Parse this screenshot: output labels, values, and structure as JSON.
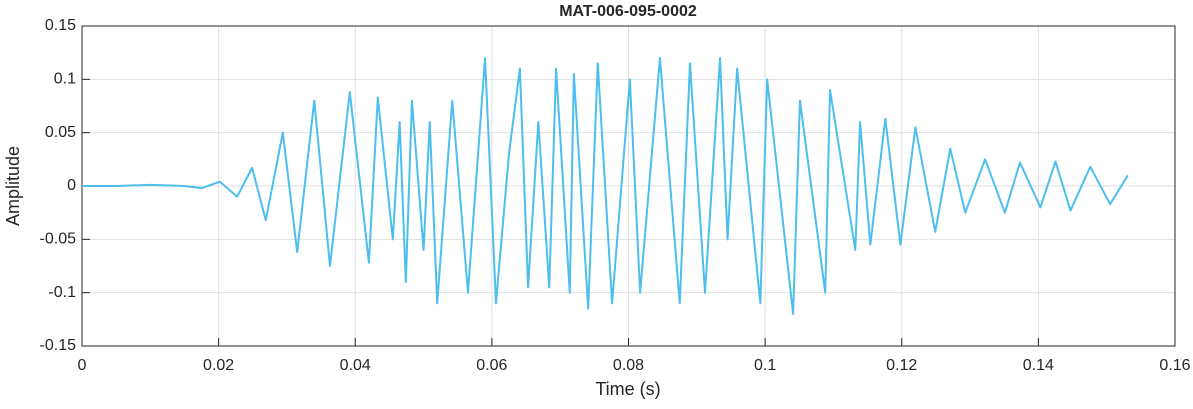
{
  "chart_data": {
    "type": "line",
    "title": "MAT-006-095-0002",
    "x_label": "Time (s)",
    "y_label": "Amplitude",
    "xlim": [
      0,
      0.16
    ],
    "xticks": [
      0,
      0.02,
      0.04,
      0.06,
      0.08,
      0.1,
      0.12,
      0.14,
      0.16
    ],
    "ylim": [
      -0.15,
      0.15
    ],
    "yticks": [
      -0.15,
      -0.1,
      -0.05,
      0,
      0.05,
      0.1,
      0.15
    ],
    "grid": true,
    "series": [
      {
        "color": "#4dbeee",
        "x": [
          0,
          0.005,
          0.01,
          0.015,
          0.0175,
          0.0202,
          0.0227,
          0.0249,
          0.0269,
          0.0294,
          0.0315,
          0.034,
          0.0363,
          0.0392,
          0.042,
          0.0433,
          0.0455,
          0.0465,
          0.0474,
          0.0483,
          0.05,
          0.0509,
          0.052,
          0.0542,
          0.0565,
          0.059,
          0.0606,
          0.0625,
          0.0641,
          0.0653,
          0.0668,
          0.0684,
          0.0694,
          0.0714,
          0.072,
          0.0741,
          0.0755,
          0.0776,
          0.0802,
          0.0817,
          0.0846,
          0.0875,
          0.089,
          0.0912,
          0.0934,
          0.0945,
          0.0959,
          0.0993,
          0.1003,
          0.1041,
          0.1051,
          0.1088,
          0.1095,
          0.1132,
          0.1139,
          0.1154,
          0.1176,
          0.1198,
          0.122,
          0.1249,
          0.1271,
          0.1293,
          0.1322,
          0.1351,
          0.1373,
          0.1403,
          0.1425,
          0.1447,
          0.1476,
          0.1505,
          0.1531
        ],
        "values": [
          0,
          0,
          0.001,
          0,
          -0.002,
          0.004,
          -0.01,
          0.017,
          -0.032,
          0.05,
          -0.062,
          0.08,
          -0.075,
          0.088,
          -0.072,
          0.083,
          -0.05,
          0.06,
          -0.09,
          0.08,
          -0.06,
          0.06,
          -0.11,
          0.08,
          -0.1,
          0.12,
          -0.11,
          0.03,
          0.11,
          -0.095,
          0.06,
          -0.095,
          0.11,
          -0.1,
          0.105,
          -0.115,
          0.115,
          -0.11,
          0.1,
          -0.1,
          0.12,
          -0.11,
          0.115,
          -0.1,
          0.12,
          -0.05,
          0.11,
          -0.11,
          0.1,
          -0.12,
          0.08,
          -0.1,
          0.09,
          -0.06,
          0.06,
          -0.055,
          0.063,
          -0.055,
          0.055,
          -0.043,
          0.035,
          -0.025,
          0.025,
          -0.025,
          0.022,
          -0.02,
          0.023,
          -0.023,
          0.018,
          -0.017,
          0.01
        ]
      }
    ]
  }
}
